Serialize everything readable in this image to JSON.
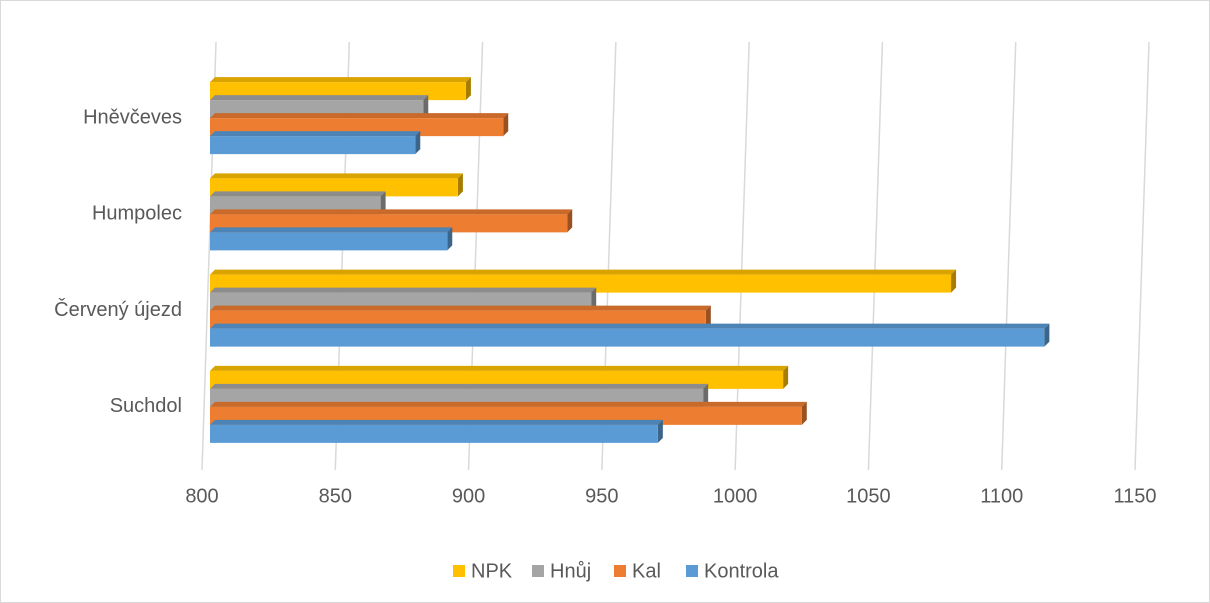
{
  "chart_data": {
    "type": "bar3d_horizontal",
    "categories": [
      "Suchdol",
      "Červený újezd",
      "Humpolec",
      "Hněvčeves"
    ],
    "series": [
      {
        "name": "NPK",
        "color": "#ffc000",
        "values": [
          1015,
          1078,
          893,
          896
        ]
      },
      {
        "name": "Hnůj",
        "color": "#a5a5a5",
        "values": [
          985,
          943,
          864,
          880
        ]
      },
      {
        "name": "Kal",
        "color": "#ed7d31",
        "values": [
          1022,
          986,
          934,
          910
        ]
      },
      {
        "name": "Kontrola",
        "color": "#5b9bd5",
        "values": [
          968,
          1113,
          889,
          877
        ]
      }
    ],
    "xlim": [
      800,
      1150
    ],
    "xticks": [
      800,
      850,
      900,
      950,
      1000,
      1050,
      1100,
      1150
    ],
    "grid": true,
    "legend": "bottom"
  }
}
